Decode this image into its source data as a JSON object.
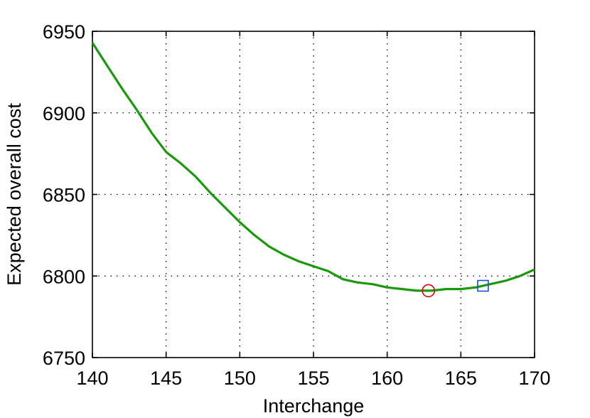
{
  "chart_data": {
    "type": "line",
    "title": "",
    "xlabel": "Interchange",
    "ylabel": "Expected overall cost",
    "xlim": [
      140,
      170
    ],
    "ylim": [
      6750,
      6950
    ],
    "xticks": [
      140,
      145,
      150,
      155,
      160,
      165,
      170
    ],
    "yticks": [
      6750,
      6800,
      6850,
      6900,
      6950
    ],
    "grid": true,
    "series": [
      {
        "color": "#1a9a0a",
        "x": [
          140,
          141,
          142,
          143,
          144,
          145,
          146,
          147,
          148,
          149,
          150,
          151,
          152,
          153,
          154,
          155,
          156,
          157,
          158,
          159,
          160,
          161,
          162,
          163,
          164,
          165,
          166,
          167,
          168,
          169,
          170
        ],
        "y": [
          6943,
          6929,
          6915,
          6902,
          6888,
          6876,
          6869,
          6861,
          6851,
          6842,
          6833,
          6825,
          6818,
          6813,
          6809,
          6806,
          6803,
          6798,
          6796,
          6795,
          6793,
          6792,
          6791,
          6791,
          6792,
          6792,
          6793,
          6795,
          6797,
          6800,
          6804
        ]
      }
    ],
    "markers": [
      {
        "shape": "circle",
        "color": "#e00000",
        "x": 162.8,
        "y": 6791
      },
      {
        "shape": "square",
        "color": "#1d4fd8",
        "x": 166.5,
        "y": 6794
      }
    ]
  }
}
